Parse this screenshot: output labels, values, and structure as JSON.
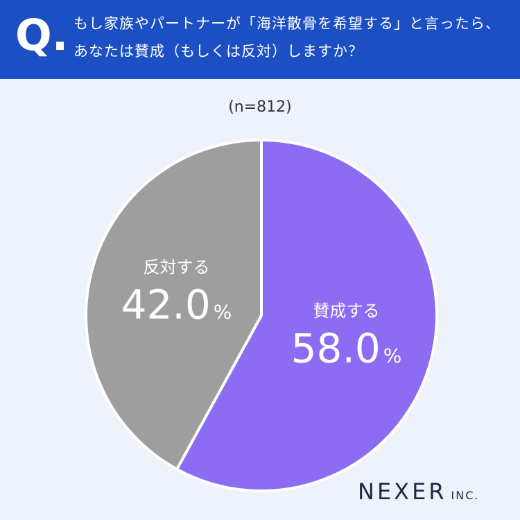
{
  "header": {
    "q_mark": "Q.",
    "question": "もし家族やパートナーが「海洋散骨を希望する」と言ったら、あなたは賛成（もしくは反対）しますか？",
    "bg_color": "#1d4fc4"
  },
  "chart_data": {
    "type": "pie",
    "sample_size": "(n=812)",
    "slices": [
      {
        "label": "賛成する",
        "value": 58.0,
        "value_text": "58.0",
        "unit": "%",
        "color": "#8b6cf2"
      },
      {
        "label": "反対する",
        "value": 42.0,
        "value_text": "42.0",
        "unit": "%",
        "color": "#9e9e9e"
      }
    ]
  },
  "logo": {
    "name": "NEXER",
    "suffix": "INC."
  }
}
